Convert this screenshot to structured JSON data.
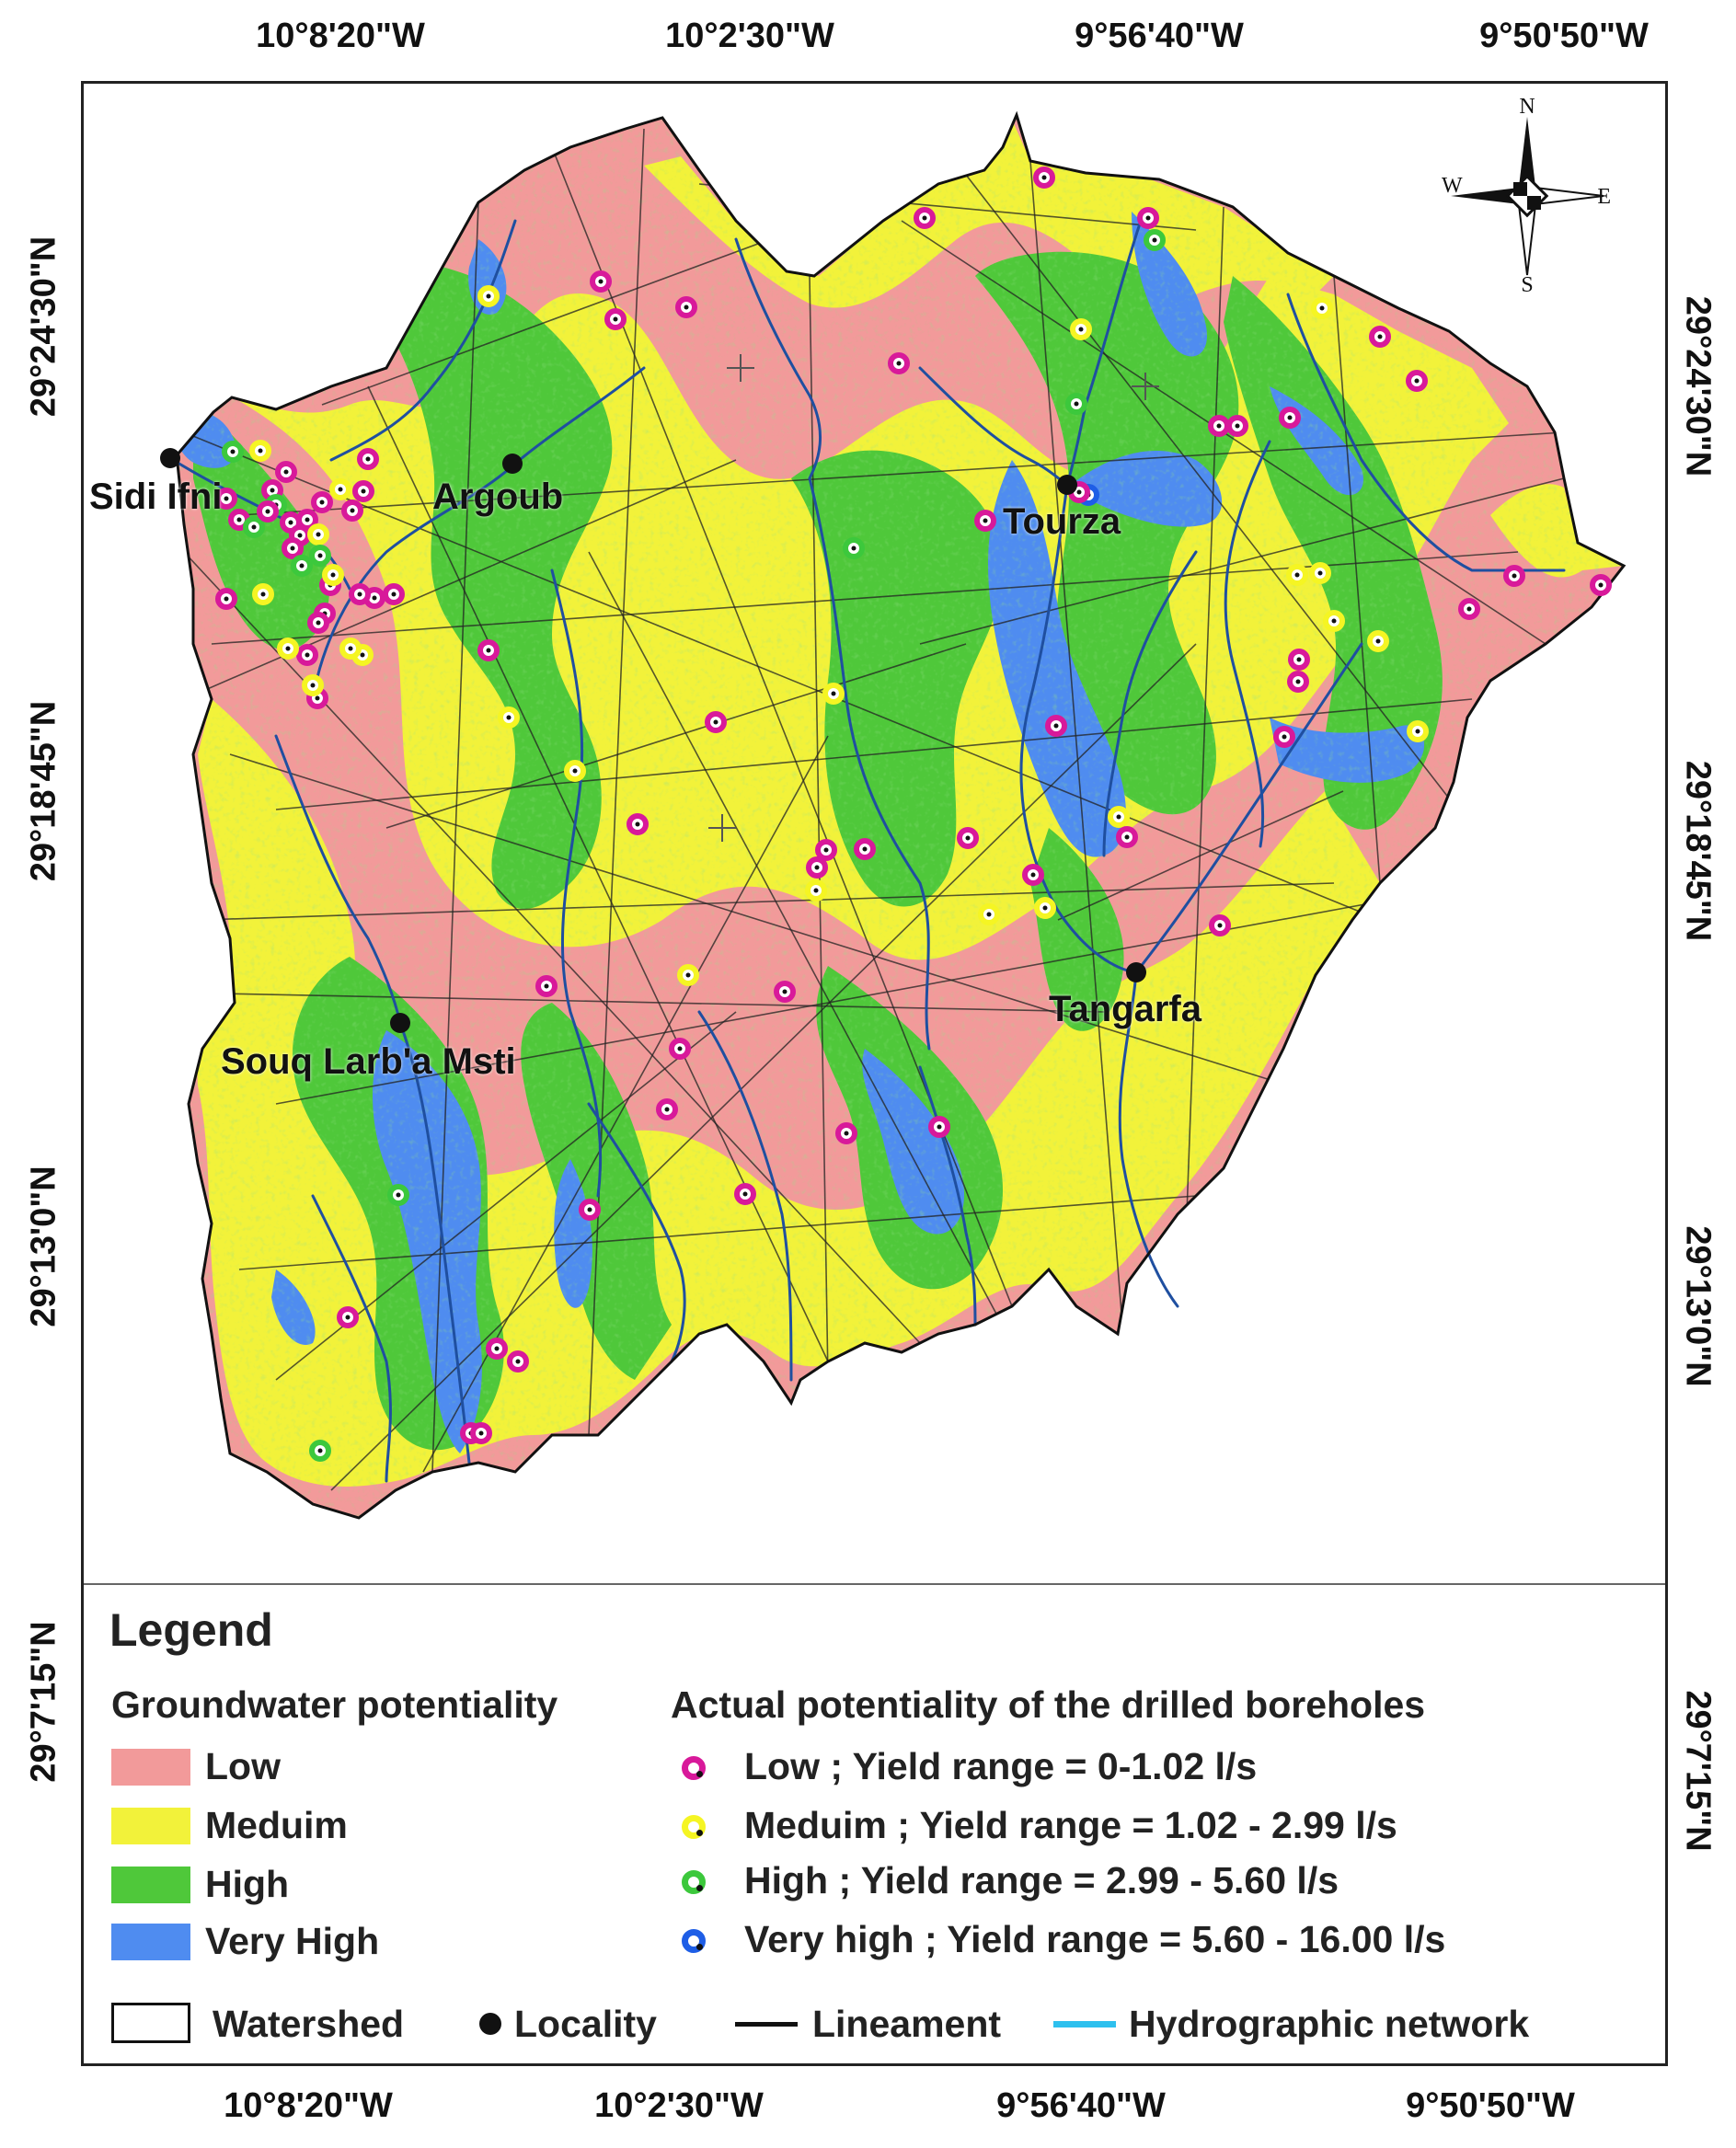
{
  "map": {
    "longitude_labels": [
      "10°8'20\"W",
      "10°2'30\"W",
      "9°56'40\"W",
      "9°50'50\"W"
    ],
    "latitude_labels": [
      "29°24'30\"N",
      "29°18'45\"N",
      "29°13'0\"N",
      "29°7'15\"N"
    ],
    "north_arrow": {
      "n": "N",
      "s": "S",
      "e": "E",
      "w": "W"
    },
    "localities": [
      "Sidi Ifni",
      "Argoub",
      "Tourza",
      "Tangarfa",
      "Souq Larb'a Msti"
    ],
    "colors": {
      "low": "#f29a9a",
      "medium": "#f2f23a",
      "high": "#4fc83a",
      "very_high": "#4f8cf0",
      "stream": "#1f4fa0",
      "lineament": "#222222",
      "hydro_legend": "#2ec0ee"
    }
  },
  "legend": {
    "title": "Legend",
    "gw_heading": "Groundwater potentiality",
    "gw_classes": [
      "Low",
      "Meduim",
      "High",
      "Very High"
    ],
    "bh_heading": "Actual potentiality of the drilled boreholes",
    "bh_classes": [
      "Low ; Yield range = 0-1.02 l/s",
      "Meduim ; Yield range = 1.02 - 2.99 l/s",
      "High ; Yield range = 2.99 - 5.60 l/s",
      "Very high ; Yield range = 5.60 - 16.00 l/s"
    ],
    "bh_colors": [
      "#d8199a",
      "#f5f523",
      "#3cc83c",
      "#1e5ee6"
    ],
    "bottom_items": [
      "Watershed",
      "Locality",
      "Lineament",
      "Hydrographic network"
    ]
  }
}
